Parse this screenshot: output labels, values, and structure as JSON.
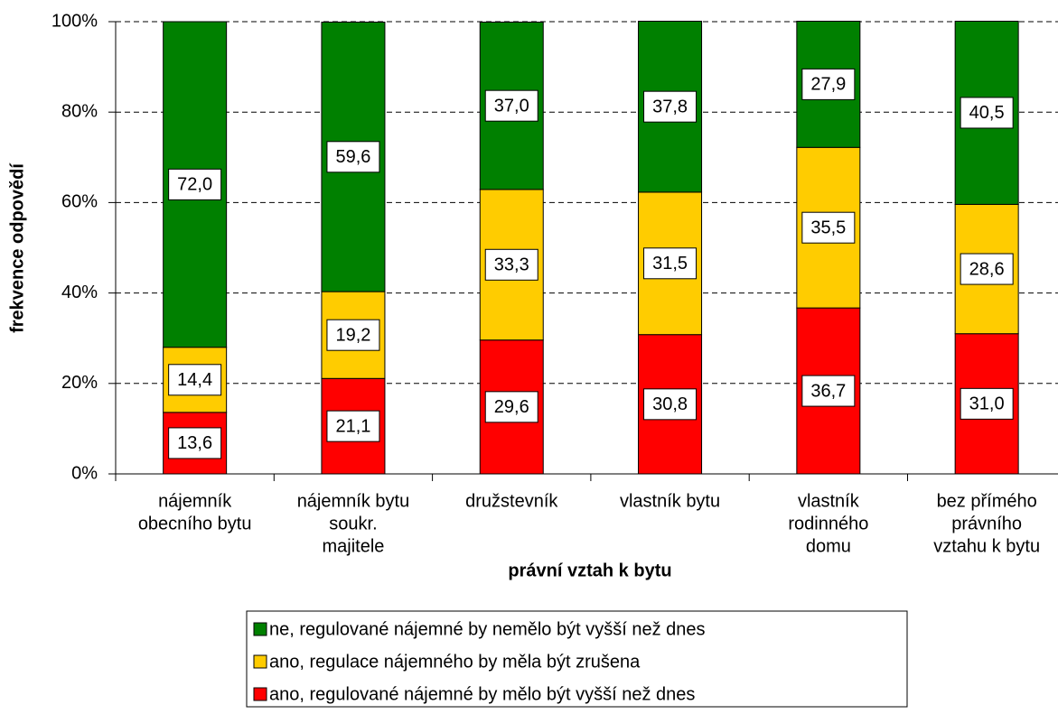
{
  "chart_data": {
    "type": "stacked_bar",
    "y_label": "frekvence odpovědí",
    "x_label": "právní vztah k bytu",
    "categories": [
      [
        "nájemník",
        "obecního bytu"
      ],
      [
        "nájemník bytu",
        "soukr.",
        "majitele"
      ],
      [
        "družstevník"
      ],
      [
        "vlastník bytu"
      ],
      [
        "vlastník",
        "rodinného",
        "domu"
      ],
      [
        "bez přímého",
        "právního",
        "vztahu k bytu"
      ]
    ],
    "series": [
      {
        "name": "ne, regulované nájemné by nemělo být vyšší než dnes",
        "color": "#008000",
        "values": [
          72.0,
          59.6,
          37.0,
          37.8,
          27.9,
          40.5
        ],
        "value_labels": [
          "72,0",
          "59,6",
          "37,0",
          "37,8",
          "27,9",
          "40,5"
        ]
      },
      {
        "name": "ano, regulace nájemného by měla být zrušena",
        "color": "#ffcc00",
        "values": [
          14.4,
          19.2,
          33.3,
          31.5,
          35.5,
          28.6
        ],
        "value_labels": [
          "14,4",
          "19,2",
          "33,3",
          "31,5",
          "35,5",
          "28,6"
        ]
      },
      {
        "name": "ano, regulované nájemné by mělo být vyšší než dnes",
        "color": "#ff0000",
        "values": [
          13.6,
          21.1,
          29.6,
          30.8,
          36.7,
          31.0
        ],
        "value_labels": [
          "13,6",
          "21,1",
          "29,6",
          "30,8",
          "36,7",
          "31,0"
        ]
      }
    ],
    "ylim": [
      0,
      100
    ],
    "yticks": [
      {
        "value": 0,
        "label": "0%"
      },
      {
        "value": 20,
        "label": "20%"
      },
      {
        "value": 40,
        "label": "40%"
      },
      {
        "value": 60,
        "label": "60%"
      },
      {
        "value": 80,
        "label": "80%"
      },
      {
        "value": 100,
        "label": "100%"
      }
    ],
    "grid": true
  }
}
